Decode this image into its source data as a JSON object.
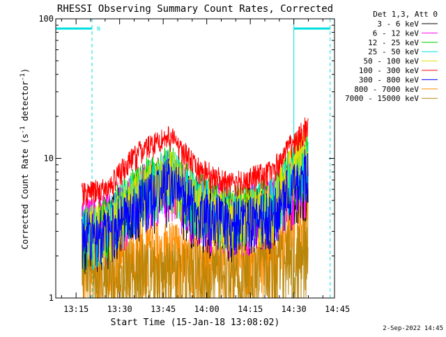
{
  "chart_data": {
    "type": "line",
    "title": "RHESSI Observing Summary Count Rates, Corrected",
    "xlabel": "Start Time (15-Jan-18 13:08:02)",
    "ylabel_main": "Corrected Count Rate (s",
    "ylabel_sup1": "-1",
    "ylabel_mid": " detector",
    "ylabel_sup2": "-1",
    "ylabel_end": ")",
    "yscale": "log",
    "ylim": [
      1,
      100
    ],
    "xlim_minutes": [
      0,
      96
    ],
    "x_ticks": [
      "13:15",
      "13:30",
      "13:45",
      "14:00",
      "14:15",
      "14:30",
      "14:45"
    ],
    "x_tick_minutes": [
      7,
      22,
      37,
      52,
      67,
      82,
      97
    ],
    "y_ticks": [
      "1",
      "10",
      "100"
    ],
    "y_tick_values": [
      1,
      10,
      100
    ],
    "legend_header": "Det 1,3, Att 0",
    "legend_placement": "top-right outside",
    "series": [
      {
        "name": "3 - 6 keV",
        "color": "#000000",
        "values_minutes": [
          9,
          18,
          30,
          39,
          48,
          60,
          75,
          87
        ],
        "values": [
          3.0,
          3.5,
          5.5,
          7.0,
          4.5,
          3.8,
          4.5,
          8.0
        ]
      },
      {
        "name": "6 - 12 keV",
        "color": "#ff00ff",
        "values_minutes": [
          9,
          18,
          30,
          39,
          48,
          60,
          75,
          87
        ],
        "values": [
          3.2,
          3.8,
          6.0,
          7.5,
          4.8,
          4.0,
          4.8,
          8.5
        ]
      },
      {
        "name": "12 - 25 keV",
        "color": "#00d000",
        "values_minutes": [
          9,
          18,
          30,
          39,
          48,
          60,
          75,
          87
        ],
        "values": [
          3.0,
          3.6,
          6.5,
          8.5,
          5.5,
          4.2,
          5.0,
          11.0
        ]
      },
      {
        "name": "25 - 50 keV",
        "color": "#00e0e0",
        "values_minutes": [
          9,
          18,
          30,
          39,
          48,
          60,
          75,
          87
        ],
        "values": [
          3.0,
          3.4,
          6.0,
          8.0,
          5.2,
          4.0,
          4.8,
          10.5
        ]
      },
      {
        "name": "50 - 100 keV",
        "color": "#e0e000",
        "values_minutes": [
          9,
          18,
          30,
          39,
          48,
          60,
          75,
          87
        ],
        "values": [
          3.0,
          3.3,
          5.8,
          7.8,
          5.0,
          3.9,
          4.7,
          12.0
        ]
      },
      {
        "name": "100 - 300 keV",
        "color": "#ff0000",
        "values_minutes": [
          9,
          18,
          30,
          39,
          48,
          60,
          75,
          87
        ],
        "values": [
          5.5,
          6.0,
          11.5,
          14.5,
          8.5,
          6.5,
          8.0,
          17.0
        ]
      },
      {
        "name": "300 - 800 keV",
        "color": "#0000ff",
        "values_minutes": [
          9,
          18,
          30,
          39,
          48,
          60,
          75,
          87
        ],
        "values": [
          2.8,
          3.0,
          5.0,
          7.0,
          4.5,
          3.5,
          4.0,
          8.5
        ]
      },
      {
        "name": "800 - 7000 keV",
        "color": "#ff8c00",
        "values_minutes": [
          9,
          18,
          30,
          39,
          48,
          60,
          75,
          87
        ],
        "values": [
          2.0,
          2.0,
          2.2,
          2.2,
          2.0,
          2.0,
          2.2,
          4.5
        ]
      },
      {
        "name": "7000 - 15000 keV",
        "color": "#b8860b",
        "values_minutes": [
          9,
          18,
          30,
          39,
          48,
          60,
          75,
          87
        ],
        "values": [
          1.5,
          1.6,
          1.6,
          1.5,
          1.5,
          1.5,
          1.6,
          2.5
        ]
      }
    ],
    "annotations": {
      "night_marker": "N",
      "night_bars_minutes": [
        [
          0,
          12.5
        ],
        [
          82,
          94.5
        ]
      ],
      "night_dashed_minutes": [
        12.5,
        94.5
      ],
      "solid_marker_minute": 82,
      "data_span_minutes": [
        9,
        87
      ]
    },
    "timestamp": "2-Sep-2022 14:45"
  },
  "colors": {
    "axis": "#000000",
    "night": "#00e0e0"
  }
}
